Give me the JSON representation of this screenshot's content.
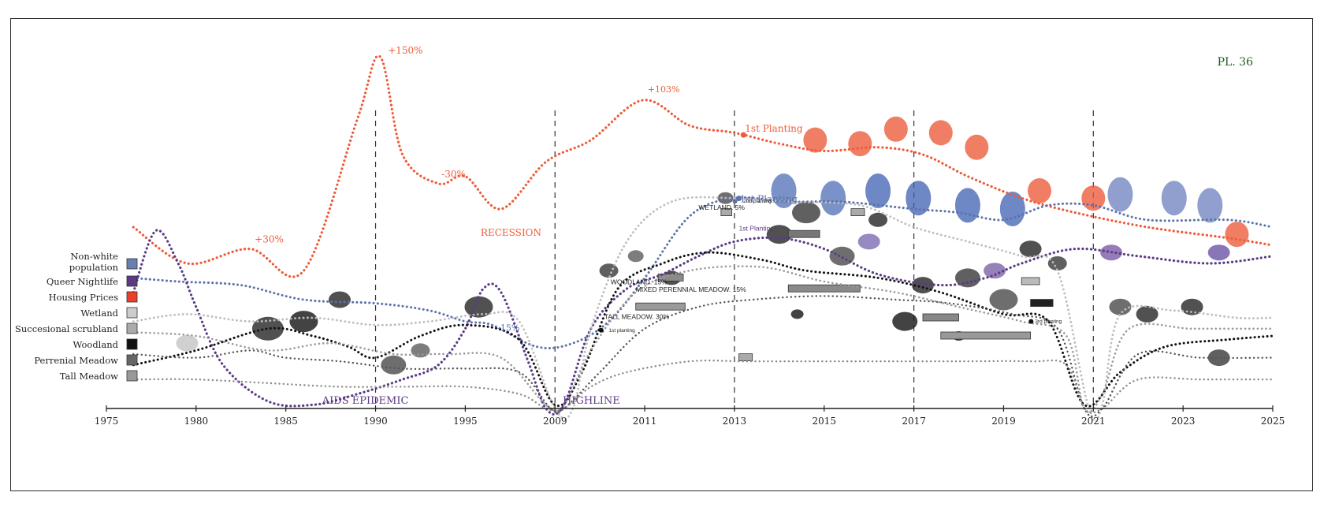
{
  "plate_label": "PL. 36",
  "colors": {
    "nonwhite": "#5b72aa",
    "nightlife": "#5c3a86",
    "housing": "#ef5b37",
    "wetland": "#bdbdbd",
    "scrubland": "#9a9a9a",
    "woodland": "#111111",
    "meadow": "#555555",
    "tall_meadow": "#8a8a8a",
    "axis": "#222222"
  },
  "legend": [
    {
      "label": "Non-white population",
      "key": "nonwhite",
      "swatch": "#6a7fb1"
    },
    {
      "label": "Queer Nightlife",
      "key": "nightlife",
      "swatch": "#5c3a86"
    },
    {
      "label": "Housing Prices",
      "key": "housing",
      "swatch": "#e8402a"
    },
    {
      "label": "Wetland",
      "key": "wetland",
      "swatch": "#cccccc"
    },
    {
      "label": "Succesional scrubland",
      "key": "scrubland",
      "swatch": "#aaaaaa"
    },
    {
      "label": "Woodland",
      "key": "woodland",
      "swatch": "#111111"
    },
    {
      "label": "Perrenial Meadow",
      "key": "meadow",
      "swatch": "#666666"
    },
    {
      "label": "Tall Meadow",
      "key": "tall_meadow",
      "swatch": "#999999"
    }
  ],
  "chart_data": {
    "type": "line",
    "x_ticks": [
      "1975",
      "1980",
      "1985",
      "1990",
      "1995",
      "2009",
      "2011",
      "2013",
      "2015",
      "2017",
      "2019",
      "2021",
      "2023",
      "2025"
    ],
    "event_ticks": [
      "1990",
      "2009",
      "2013",
      "2017",
      "2021"
    ],
    "annotations": {
      "housing": [
        {
          "text": "+30%",
          "at": 1.6
        },
        {
          "text": "+150%",
          "at": 3.05
        },
        {
          "text": "-30%",
          "at": 3.7
        },
        {
          "text": "RECESSION",
          "at": 4.4
        },
        {
          "text": "+103%",
          "at": 5.98
        },
        {
          "text": "1st Planting",
          "at": 7.1
        }
      ],
      "nightlife": [
        {
          "text": "AIDS EPIDEMIC",
          "at": 2.5
        },
        {
          "text": "HIGHLINE",
          "at": 5.3
        }
      ],
      "nonwhite": [
        {
          "text": "-15%",
          "at": 4.2
        },
        {
          "text": "1st Planting",
          "at": 7.2
        }
      ],
      "habitat": [
        {
          "text": "WETLAND. 5%",
          "at": 6.6
        },
        {
          "text": "WOODLAND. 15%",
          "at": 5.65
        },
        {
          "text": "MIXED PERENNIAL MEADOW. 15%",
          "at": 5.95
        },
        {
          "text": "TALL MEADOW. 30%",
          "at": 5.55
        },
        {
          "text": "1st planting",
          "at": 5.55
        },
        {
          "text": "2nd planting",
          "at": 7.05
        },
        {
          "text": "1st Planting",
          "at": 7.05
        },
        {
          "text": "3rd planting",
          "at": 10.3
        }
      ]
    },
    "series": [
      {
        "name": "Housing Prices",
        "key": "housing",
        "points": [
          [
            0.3,
            50
          ],
          [
            0.9,
            40
          ],
          [
            1.6,
            44
          ],
          [
            2.2,
            38
          ],
          [
            2.8,
            80
          ],
          [
            3.05,
            97
          ],
          [
            3.3,
            70
          ],
          [
            3.7,
            62
          ],
          [
            4.0,
            64
          ],
          [
            4.4,
            55
          ],
          [
            4.9,
            68
          ],
          [
            5.4,
            74
          ],
          [
            5.98,
            85
          ],
          [
            6.5,
            78
          ],
          [
            7.0,
            76
          ],
          [
            7.5,
            73
          ],
          [
            8.0,
            71
          ],
          [
            8.6,
            72
          ],
          [
            9.1,
            70
          ],
          [
            9.6,
            64
          ],
          [
            10.2,
            58
          ],
          [
            10.8,
            54
          ],
          [
            11.6,
            50
          ],
          [
            12.5,
            47
          ],
          [
            13.0,
            45
          ]
        ]
      },
      {
        "name": "Non-white population",
        "key": "nonwhite",
        "points": [
          [
            0.3,
            36
          ],
          [
            0.8,
            35
          ],
          [
            1.5,
            34
          ],
          [
            2.2,
            30
          ],
          [
            3.0,
            29
          ],
          [
            3.6,
            27
          ],
          [
            4.0,
            24
          ],
          [
            4.3,
            23
          ],
          [
            4.8,
            17
          ],
          [
            5.2,
            18
          ],
          [
            5.6,
            24
          ],
          [
            6.0,
            36
          ],
          [
            6.5,
            53
          ],
          [
            7.0,
            58
          ],
          [
            7.6,
            57
          ],
          [
            8.2,
            57
          ],
          [
            9.0,
            55
          ],
          [
            9.5,
            54
          ],
          [
            10.0,
            52
          ],
          [
            10.5,
            56
          ],
          [
            11.0,
            56
          ],
          [
            11.6,
            52
          ],
          [
            12.5,
            52
          ],
          [
            13.0,
            50
          ]
        ]
      },
      {
        "name": "Queer Nightlife",
        "key": "nightlife",
        "points": [
          [
            0.3,
            32
          ],
          [
            0.55,
            49
          ],
          [
            0.8,
            40
          ],
          [
            1.0,
            28
          ],
          [
            1.3,
            12
          ],
          [
            1.8,
            2
          ],
          [
            2.3,
            1
          ],
          [
            2.8,
            4
          ],
          [
            3.3,
            8
          ],
          [
            3.7,
            12
          ],
          [
            4.0,
            22
          ],
          [
            4.2,
            33
          ],
          [
            4.4,
            32
          ],
          [
            4.7,
            13
          ],
          [
            4.9,
            0
          ],
          [
            5.1,
            1
          ],
          [
            5.4,
            22
          ],
          [
            5.8,
            33
          ],
          [
            6.2,
            37
          ],
          [
            6.6,
            42
          ],
          [
            7.0,
            46
          ],
          [
            7.5,
            47
          ],
          [
            8.0,
            44
          ],
          [
            8.6,
            37
          ],
          [
            9.3,
            34
          ],
          [
            9.8,
            36
          ],
          [
            10.2,
            40
          ],
          [
            10.8,
            44
          ],
          [
            11.5,
            42
          ],
          [
            12.3,
            40
          ],
          [
            13.0,
            42
          ]
        ]
      },
      {
        "name": "Woodland",
        "key": "woodland",
        "points": [
          [
            0.3,
            12
          ],
          [
            1.0,
            16
          ],
          [
            1.8,
            22
          ],
          [
            2.3,
            20
          ],
          [
            2.7,
            17
          ],
          [
            3.0,
            14
          ],
          [
            3.5,
            20
          ],
          [
            4.0,
            23
          ],
          [
            4.6,
            19
          ],
          [
            5.0,
            1
          ],
          [
            5.3,
            10
          ],
          [
            5.7,
            33
          ],
          [
            6.2,
            40
          ],
          [
            6.7,
            43
          ],
          [
            7.3,
            41
          ],
          [
            7.8,
            38
          ],
          [
            8.6,
            36
          ],
          [
            9.3,
            32
          ],
          [
            10.0,
            26
          ],
          [
            10.5,
            24
          ],
          [
            10.9,
            1
          ],
          [
            11.3,
            10
          ],
          [
            11.8,
            17
          ],
          [
            12.5,
            19
          ],
          [
            13.0,
            20
          ]
        ]
      },
      {
        "name": "Wetland",
        "key": "wetland",
        "points": [
          [
            0.3,
            24
          ],
          [
            0.9,
            26
          ],
          [
            1.6,
            24
          ],
          [
            2.3,
            25
          ],
          [
            3.0,
            23
          ],
          [
            3.6,
            24
          ],
          [
            4.2,
            26
          ],
          [
            4.6,
            24
          ],
          [
            5.0,
            0
          ],
          [
            5.2,
            0
          ],
          [
            5.4,
            22
          ],
          [
            5.8,
            46
          ],
          [
            6.3,
            57
          ],
          [
            7.0,
            58
          ],
          [
            7.6,
            57
          ],
          [
            8.4,
            56
          ],
          [
            9.0,
            50
          ],
          [
            9.6,
            46
          ],
          [
            10.2,
            42
          ],
          [
            10.6,
            38
          ],
          [
            10.95,
            0
          ],
          [
            11.1,
            1
          ],
          [
            11.3,
            26
          ],
          [
            11.9,
            27
          ],
          [
            12.6,
            25
          ],
          [
            13.0,
            25
          ]
        ]
      },
      {
        "name": "Succesional scrubland",
        "key": "scrubland",
        "points": [
          [
            0.3,
            21
          ],
          [
            1.0,
            20
          ],
          [
            1.8,
            16
          ],
          [
            2.5,
            18
          ],
          [
            3.2,
            15
          ],
          [
            3.8,
            15
          ],
          [
            4.4,
            14
          ],
          [
            4.9,
            1
          ],
          [
            5.1,
            1
          ],
          [
            5.4,
            16
          ],
          [
            5.9,
            32
          ],
          [
            6.5,
            38
          ],
          [
            7.3,
            39
          ],
          [
            8.0,
            35
          ],
          [
            8.8,
            32
          ],
          [
            9.5,
            28
          ],
          [
            10.2,
            24
          ],
          [
            10.7,
            20
          ],
          [
            10.9,
            0
          ],
          [
            11.1,
            4
          ],
          [
            11.4,
            22
          ],
          [
            12.1,
            22
          ],
          [
            12.8,
            22
          ],
          [
            13.0,
            22
          ]
        ]
      },
      {
        "name": "Perrenial Meadow",
        "key": "meadow",
        "points": [
          [
            0.3,
            15
          ],
          [
            1.0,
            14
          ],
          [
            1.6,
            16
          ],
          [
            2.0,
            14
          ],
          [
            2.6,
            13
          ],
          [
            3.3,
            11
          ],
          [
            4.0,
            11
          ],
          [
            4.6,
            10
          ],
          [
            4.95,
            0
          ],
          [
            5.1,
            0
          ],
          [
            5.5,
            10
          ],
          [
            6.0,
            22
          ],
          [
            6.6,
            28
          ],
          [
            7.2,
            30
          ],
          [
            8.0,
            31
          ],
          [
            8.8,
            30
          ],
          [
            9.4,
            29
          ],
          [
            10.1,
            26
          ],
          [
            10.6,
            22
          ],
          [
            10.9,
            0
          ],
          [
            11.1,
            0
          ],
          [
            11.5,
            15
          ],
          [
            12.2,
            14
          ],
          [
            13.0,
            14
          ]
        ]
      },
      {
        "name": "Tall Meadow",
        "key": "tall_meadow",
        "points": [
          [
            0.3,
            8
          ],
          [
            1.0,
            8
          ],
          [
            1.8,
            7
          ],
          [
            2.6,
            6
          ],
          [
            3.3,
            6
          ],
          [
            4.0,
            6
          ],
          [
            4.6,
            4
          ],
          [
            4.9,
            0
          ],
          [
            5.1,
            0
          ],
          [
            5.4,
            6
          ],
          [
            5.8,
            10
          ],
          [
            6.5,
            13
          ],
          [
            7.1,
            13
          ],
          [
            7.7,
            13
          ],
          [
            8.6,
            13
          ],
          [
            9.5,
            13
          ],
          [
            10.3,
            13
          ],
          [
            10.7,
            12
          ],
          [
            10.9,
            0
          ],
          [
            11.1,
            0
          ],
          [
            11.5,
            8
          ],
          [
            12.2,
            8
          ],
          [
            13.0,
            8
          ]
        ]
      }
    ],
    "habitat_bars": [
      {
        "at": 5.9,
        "width": 0.55,
        "level": 28,
        "shade": "#9a9a9a"
      },
      {
        "at": 6.15,
        "width": 0.28,
        "level": 36,
        "shade": "#8a8a8a"
      },
      {
        "at": 6.85,
        "width": 0.12,
        "level": 54,
        "shade": "#aaaaaa"
      },
      {
        "at": 7.6,
        "width": 0.35,
        "level": 48,
        "shade": "#777777"
      },
      {
        "at": 7.6,
        "width": 0.8,
        "level": 33,
        "shade": "#8a8a8a"
      },
      {
        "at": 8.3,
        "width": 0.15,
        "level": 54,
        "shade": "#aaaaaa"
      },
      {
        "at": 9.1,
        "width": 0.4,
        "level": 25,
        "shade": "#888888"
      },
      {
        "at": 9.3,
        "width": 1.0,
        "level": 20,
        "shade": "#999999"
      },
      {
        "at": 10.2,
        "width": 0.2,
        "level": 35,
        "shade": "#bbbbbb"
      },
      {
        "at": 10.3,
        "width": 0.25,
        "level": 29,
        "shade": "#222222"
      },
      {
        "at": 7.05,
        "width": 0.15,
        "level": 14,
        "shade": "#aaaaaa"
      }
    ]
  }
}
